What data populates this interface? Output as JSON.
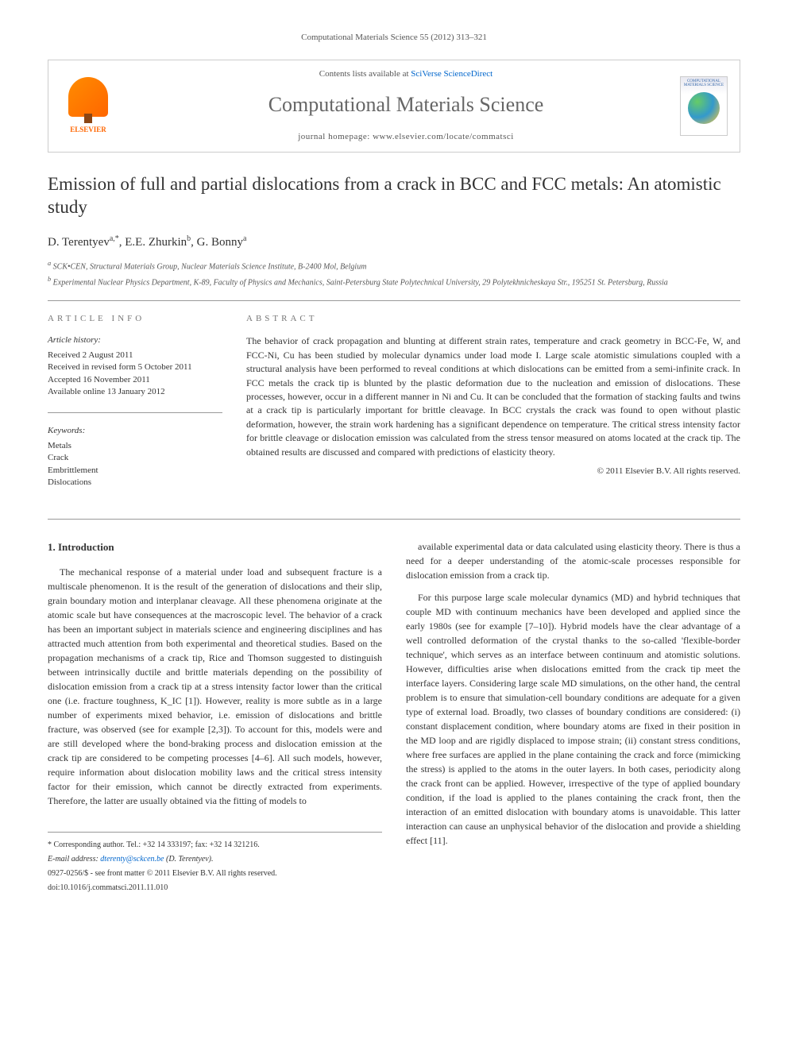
{
  "citation": "Computational Materials Science 55 (2012) 313–321",
  "banner": {
    "publisher_logo": "ELSEVIER",
    "contents_prefix": "Contents lists available at ",
    "contents_link": "SciVerse ScienceDirect",
    "journal_title": "Computational Materials Science",
    "homepage_label": "journal homepage: ",
    "homepage_url": "www.elsevier.com/locate/commatsci",
    "cover_label": "COMPUTATIONAL MATERIALS SCIENCE"
  },
  "article": {
    "title": "Emission of full and partial dislocations from a crack in BCC and FCC metals: An atomistic study",
    "authors_html": "D. Terentyev",
    "author1": "D. Terentyev",
    "author1_sup": "a,*",
    "author2": "E.E. Zhurkin",
    "author2_sup": "b",
    "author3": "G. Bonny",
    "author3_sup": "a",
    "affiliations": {
      "a": "SCK•CEN, Structural Materials Group, Nuclear Materials Science Institute, B-2400 Mol, Belgium",
      "b": "Experimental Nuclear Physics Department, K-89, Faculty of Physics and Mechanics, Saint-Petersburg State Polytechnical University, 29 Polytekhnicheskaya Str., 195251 St. Petersburg, Russia"
    }
  },
  "info": {
    "heading": "ARTICLE INFO",
    "history_label": "Article history:",
    "history": [
      "Received 2 August 2011",
      "Received in revised form 5 October 2011",
      "Accepted 16 November 2011",
      "Available online 13 January 2012"
    ],
    "keywords_label": "Keywords:",
    "keywords": [
      "Metals",
      "Crack",
      "Embrittlement",
      "Dislocations"
    ]
  },
  "abstract": {
    "heading": "ABSTRACT",
    "text": "The behavior of crack propagation and blunting at different strain rates, temperature and crack geometry in BCC-Fe, W, and FCC-Ni, Cu has been studied by molecular dynamics under load mode I. Large scale atomistic simulations coupled with a structural analysis have been performed to reveal conditions at which dislocations can be emitted from a semi-infinite crack. In FCC metals the crack tip is blunted by the plastic deformation due to the nucleation and emission of dislocations. These processes, however, occur in a different manner in Ni and Cu. It can be concluded that the formation of stacking faults and twins at a crack tip is particularly important for brittle cleavage. In BCC crystals the crack was found to open without plastic deformation, however, the strain work hardening has a significant dependence on temperature. The critical stress intensity factor for brittle cleavage or dislocation emission was calculated from the stress tensor measured on atoms located at the crack tip. The obtained results are discussed and compared with predictions of elasticity theory.",
    "copyright": "© 2011 Elsevier B.V. All rights reserved."
  },
  "section1": {
    "heading": "1. Introduction",
    "para1": "The mechanical response of a material under load and subsequent fracture is a multiscale phenomenon. It is the result of the generation of dislocations and their slip, grain boundary motion and interplanar cleavage. All these phenomena originate at the atomic scale but have consequences at the macroscopic level. The behavior of a crack has been an important subject in materials science and engineering disciplines and has attracted much attention from both experimental and theoretical studies. Based on the propagation mechanisms of a crack tip, Rice and Thomson suggested to distinguish between intrinsically ductile and brittle materials depending on the possibility of dislocation emission from a crack tip at a stress intensity factor lower than the critical one (i.e. fracture toughness, K_IC [1]). However, reality is more subtle as in a large number of experiments mixed behavior, i.e. emission of dislocations and brittle fracture, was observed (see for example [2,3]). To account for this, models were and are still developed where the bond-braking process and dislocation emission at the crack tip are considered to be competing processes [4–6]. All such models, however, require information about dislocation mobility laws and the critical stress intensity factor for their emission, which cannot be directly extracted from experiments. Therefore, the latter are usually obtained via the fitting of models to",
    "para2": "available experimental data or data calculated using elasticity theory. There is thus a need for a deeper understanding of the atomic-scale processes responsible for dislocation emission from a crack tip.",
    "para3": "For this purpose large scale molecular dynamics (MD) and hybrid techniques that couple MD with continuum mechanics have been developed and applied since the early 1980s (see for example [7–10]). Hybrid models have the clear advantage of a well controlled deformation of the crystal thanks to the so-called 'flexible-border technique', which serves as an interface between continuum and atomistic solutions. However, difficulties arise when dislocations emitted from the crack tip meet the interface layers. Considering large scale MD simulations, on the other hand, the central problem is to ensure that simulation-cell boundary conditions are adequate for a given type of external load. Broadly, two classes of boundary conditions are considered: (i) constant displacement condition, where boundary atoms are fixed in their position in the MD loop and are rigidly displaced to impose strain; (ii) constant stress conditions, where free surfaces are applied in the plane containing the crack and force (mimicking the stress) is applied to the atoms in the outer layers. In both cases, periodicity along the crack front can be applied. However, irrespective of the type of applied boundary condition, if the load is applied to the planes containing the crack front, then the interaction of an emitted dislocation with boundary atoms is unavoidable. This latter interaction can cause an unphysical behavior of the dislocation and provide a shielding effect [11]."
  },
  "footer": {
    "corresponding": "* Corresponding author. Tel.: +32 14 333197; fax: +32 14 321216.",
    "email_label": "E-mail address: ",
    "email": "dterenty@sckcen.be",
    "email_suffix": " (D. Terentyev).",
    "issn_line": "0927-0256/$ - see front matter © 2011 Elsevier B.V. All rights reserved.",
    "doi": "doi:10.1016/j.commatsci.2011.11.010"
  },
  "refs": {
    "r1": "[1]",
    "r23": "[2,3]",
    "r46": "[4–6]",
    "r710": "[7–10]",
    "r11": "[11]"
  }
}
